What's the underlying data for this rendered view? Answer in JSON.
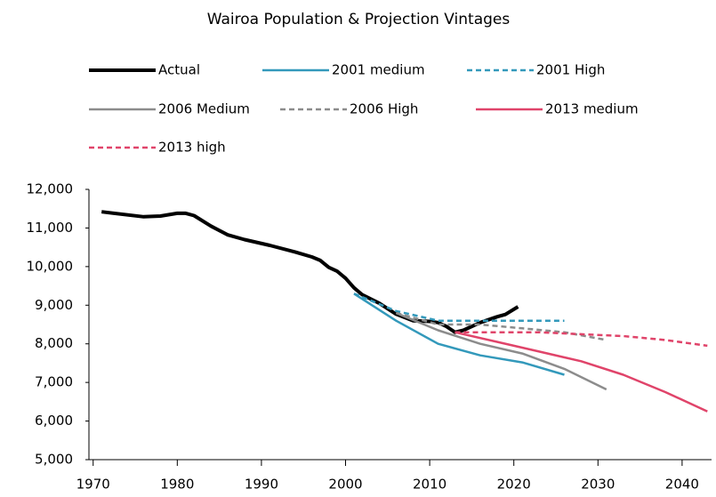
{
  "chart_data": {
    "type": "line",
    "title": "Wairoa Population & Projection Vintages",
    "xlim": [
      1969.5,
      2043.5
    ],
    "xticks": [
      1970,
      1980,
      1990,
      2000,
      2010,
      2020,
      2030,
      2040
    ],
    "ylim": [
      5000,
      12000
    ],
    "yticks": [
      {
        "value": 5000,
        "label": "5,000"
      },
      {
        "value": 6000,
        "label": "6,000"
      },
      {
        "value": 7000,
        "label": "7,000"
      },
      {
        "value": 8000,
        "label": "8,000"
      },
      {
        "value": 9000,
        "label": "9,000"
      },
      {
        "value": 10000,
        "label": "10,000"
      },
      {
        "value": 11000,
        "label": "11,000"
      },
      {
        "value": 12000,
        "label": "12,000"
      }
    ],
    "legend": "top",
    "series": [
      {
        "name": "Actual",
        "color": "#000000",
        "dashed": false,
        "x": [
          1971,
          1976,
          1978,
          1980,
          1981,
          1982,
          1984,
          1986,
          1988,
          1991,
          1994,
          1996,
          1997,
          1998,
          1999,
          2000,
          2001,
          2002,
          2004,
          2006,
          2008,
          2010,
          2011,
          2012,
          2013,
          2014,
          2016,
          2018,
          2019,
          2020.5
        ],
        "values": [
          11420,
          11290,
          11310,
          11380,
          11380,
          11320,
          11050,
          10820,
          10700,
          10550,
          10380,
          10250,
          10160,
          9980,
          9880,
          9700,
          9450,
          9270,
          9050,
          8770,
          8600,
          8580,
          8550,
          8450,
          8300,
          8350,
          8550,
          8700,
          8760,
          8960
        ]
      },
      {
        "name": "2001 medium",
        "color": "#3399bb",
        "dashed": false,
        "x": [
          2001,
          2006,
          2011,
          2016,
          2021,
          2026
        ],
        "values": [
          9300,
          8600,
          8000,
          7700,
          7520,
          7200
        ]
      },
      {
        "name": "2001 High",
        "color": "#3399bb",
        "dashed": true,
        "x": [
          2001,
          2006,
          2011,
          2016,
          2021,
          2026
        ],
        "values": [
          9300,
          8850,
          8600,
          8600,
          8600,
          8600
        ]
      },
      {
        "name": "2006 Medium",
        "color": "#8c8c8c",
        "dashed": false,
        "x": [
          2006,
          2011,
          2016,
          2021,
          2026,
          2031
        ],
        "values": [
          8800,
          8350,
          8000,
          7750,
          7350,
          6820
        ]
      },
      {
        "name": "2006 High",
        "color": "#8c8c8c",
        "dashed": true,
        "x": [
          2006,
          2011,
          2016,
          2021,
          2026,
          2031
        ],
        "values": [
          8800,
          8500,
          8500,
          8400,
          8300,
          8100
        ]
      },
      {
        "name": "2013 medium",
        "color": "#e0446a",
        "dashed": false,
        "x": [
          2013,
          2018,
          2023,
          2028,
          2033,
          2038,
          2043
        ],
        "values": [
          8300,
          8050,
          7800,
          7550,
          7200,
          6750,
          6250
        ]
      },
      {
        "name": "2013 high",
        "color": "#e0446a",
        "dashed": true,
        "x": [
          2013,
          2018,
          2023,
          2028,
          2033,
          2038,
          2043
        ],
        "values": [
          8300,
          8300,
          8300,
          8250,
          8200,
          8100,
          7950
        ]
      }
    ]
  }
}
